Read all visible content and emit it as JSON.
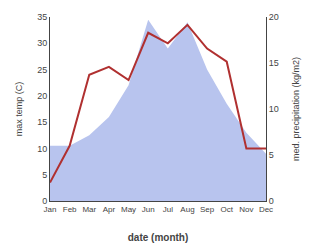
{
  "chart_data": {
    "type": "line",
    "categories": [
      "Jan",
      "Feb",
      "Mar",
      "Apr",
      "May",
      "Jun",
      "Jul",
      "Aug",
      "Sep",
      "Oct",
      "Nov",
      "Dec"
    ],
    "series": [
      {
        "type": "area",
        "color": "#b8c4ee",
        "values": [
          10.5,
          10.5,
          12.5,
          16.0,
          22.0,
          34.5,
          29.0,
          34.0,
          25.0,
          18.5,
          13.0,
          9.0
        ]
      },
      {
        "type": "line",
        "color": "#b03030",
        "values": [
          3.5,
          10.5,
          24.0,
          25.5,
          23.0,
          32.0,
          30.0,
          33.5,
          29.0,
          26.5,
          10.0,
          10.0
        ]
      }
    ],
    "xlabel": "date (month)",
    "ylabel": "max temp (C)",
    "y2label": "med. precipitation (kg/m2)",
    "ylim": [
      0,
      35
    ],
    "yticks": [
      0,
      5,
      10,
      15,
      20,
      25,
      30,
      35
    ],
    "y2lim": [
      0,
      20
    ],
    "y2ticks": [
      0,
      5,
      10,
      15,
      20
    ],
    "grid": false
  }
}
